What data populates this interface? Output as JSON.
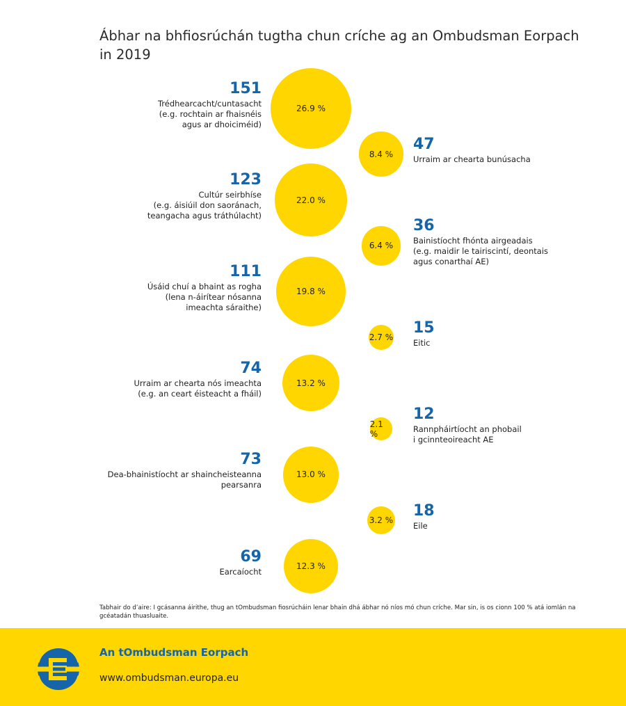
{
  "title": "Ábhar na bhfiosrúchán tugtha chun críche ag an Ombudsman Eorpach in 2019",
  "colors": {
    "bubble": "#FFD600",
    "count": "#1565A8",
    "footer_bg": "#FFD600",
    "logo_blue": "#1565A8"
  },
  "chart_data": {
    "type": "bubble",
    "title": "Ábhar na bhfiosrúchán tugtha chun críche ag an Ombudsman Eorpach in 2019",
    "items": [
      {
        "count": "151",
        "percent": "26.9 %",
        "share": 26.9,
        "side": "left",
        "label": "Trédhearcacht/cuntasacht\n(e.g. rochtain ar fhaisnéis\nagus ar dhoiciméid)"
      },
      {
        "count": "47",
        "percent": "8.4 %",
        "share": 8.4,
        "side": "right",
        "label": "Urraim ar chearta bunúsacha"
      },
      {
        "count": "123",
        "percent": "22.0 %",
        "share": 22.0,
        "side": "left",
        "label": "Cultúr seirbhíse\n(e.g. áisiúil don saoránach,\nteangacha agus tráthúlacht)"
      },
      {
        "count": "36",
        "percent": "6.4 %",
        "share": 6.4,
        "side": "right",
        "label": "Bainistíocht fhónta airgeadais\n(e.g. maidir le tairiscintí, deontais\nagus conarthaí AE)"
      },
      {
        "count": "111",
        "percent": "19.8 %",
        "share": 19.8,
        "side": "left",
        "label": "Úsáid chuí a bhaint as rogha\n(lena n-áirítear nósanna\nimeachta sáraithe)"
      },
      {
        "count": "15",
        "percent": "2.7 %",
        "share": 2.7,
        "side": "right",
        "label": "Eitic"
      },
      {
        "count": "74",
        "percent": "13.2 %",
        "share": 13.2,
        "side": "left",
        "label": "Urraim ar chearta nós imeachta\n(e.g. an ceart éisteacht a fháil)"
      },
      {
        "count": "12",
        "percent": "2.1 %",
        "share": 2.1,
        "side": "right",
        "label": "Rannpháirtíocht an phobail\ni gcinnteoireacht AE"
      },
      {
        "count": "73",
        "percent": "13.0 %",
        "share": 13.0,
        "side": "left",
        "label": "Dea-bhainistíocht ar shaincheisteanna\npearsanra"
      },
      {
        "count": "18",
        "percent": "3.2 %",
        "share": 3.2,
        "side": "right",
        "label": "Eile"
      },
      {
        "count": "69",
        "percent": "12.3 %",
        "share": 12.3,
        "side": "left",
        "label": "Earcaíocht"
      }
    ]
  },
  "note": "Tabhair do d’aire: I gcásanna áirithe, thug an tOmbudsman fiosrúcháin lenar bhain dhá ábhar nó níos mó chun críche. Mar sin, is os cionn 100 % atá iomlán na gcéatadán thuasluaite.",
  "footer": {
    "name": "An tOmbudsman Eorpach",
    "url": "www.ombudsman.europa.eu",
    "logo_icon": "euro-ombudsman-logo-icon"
  }
}
